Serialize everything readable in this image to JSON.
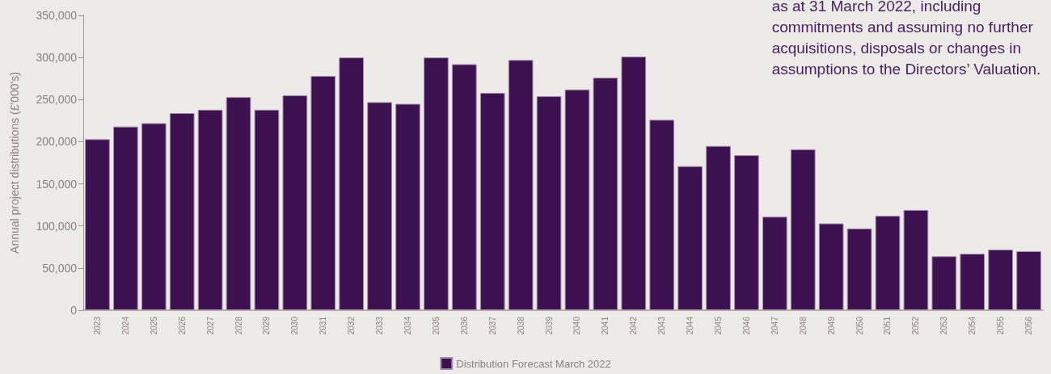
{
  "chart_data": {
    "type": "bar",
    "ylabel": "Annual project distributions (£'000's)",
    "categories": [
      "2023",
      "2024",
      "2025",
      "2026",
      "2027",
      "2028",
      "2029",
      "2030",
      "2031",
      "2032",
      "2033",
      "2034",
      "2035",
      "2036",
      "2037",
      "2038",
      "2039",
      "2040",
      "2041",
      "2042",
      "2043",
      "2044",
      "2045",
      "2046",
      "2047",
      "2048",
      "2049",
      "2050",
      "2051",
      "2052",
      "2053",
      "2054",
      "2055",
      "2056"
    ],
    "series": [
      {
        "name": "Distribution Forecast March 2022",
        "color": "#3d1150",
        "values": [
          203000,
          218000,
          222000,
          234000,
          238000,
          253000,
          238000,
          255000,
          278000,
          300000,
          247000,
          245000,
          300000,
          292000,
          258000,
          297000,
          254000,
          262000,
          276000,
          301000,
          226000,
          171000,
          195000,
          184000,
          111000,
          191000,
          103000,
          97000,
          112000,
          119000,
          64000,
          67000,
          72000,
          70000
        ]
      }
    ],
    "ylim": [
      0,
      350000
    ],
    "yticks": [
      0,
      {
        "value": 50000,
        "label": "50,000"
      },
      {
        "value": 100000,
        "label": "100,000"
      },
      {
        "value": 150000,
        "label": "150,000"
      },
      {
        "value": 200000,
        "label": "200,000"
      },
      {
        "value": 250000,
        "label": "250,000"
      },
      {
        "value": 300000,
        "label": "300,000"
      },
      {
        "value": 350000,
        "label": "350,000"
      }
    ],
    "grid": false,
    "legend": "bottom",
    "annotations": [
      "as at 31 March 2022, including\ncommitments and assuming no further\nacquisitions, disposals or changes in\nassumptions to the Directors’ Valuation."
    ]
  }
}
